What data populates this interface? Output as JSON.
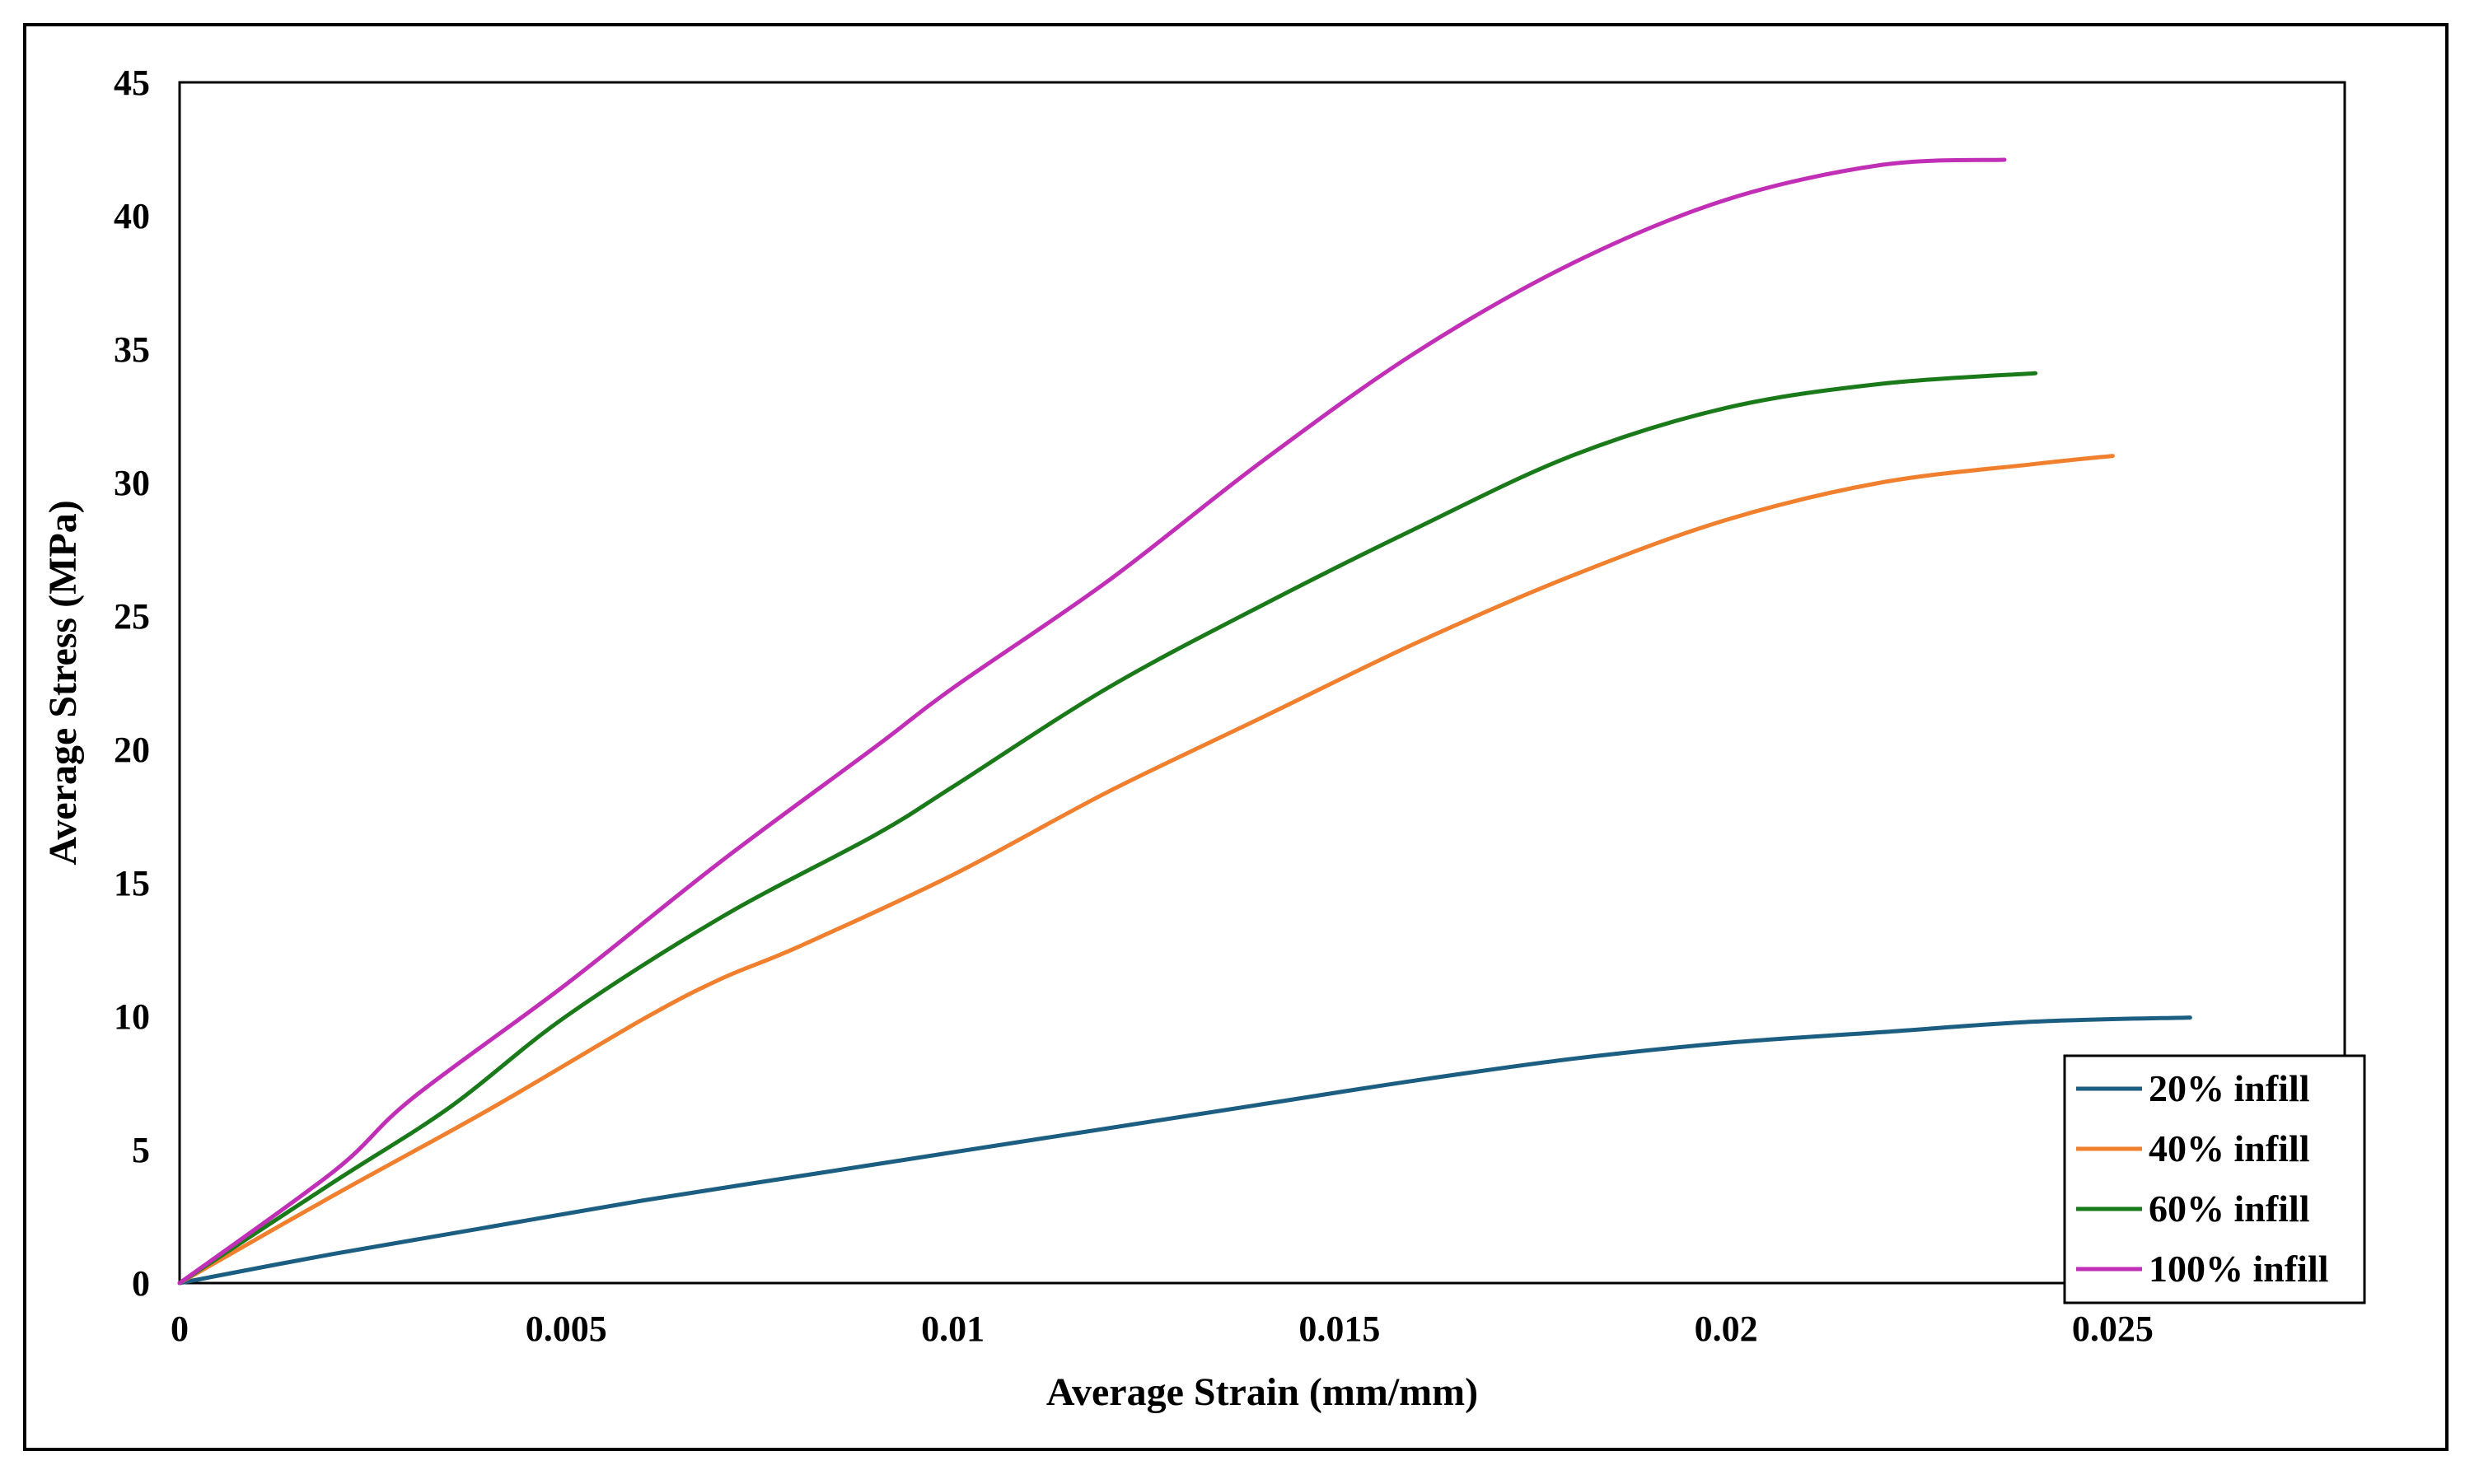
{
  "chart_data": {
    "type": "line",
    "xlabel": "Average Strain (mm/mm)",
    "ylabel": "Average Stress (MPa)",
    "xlim": [
      0,
      0.028
    ],
    "ylim": [
      0,
      45
    ],
    "x_ticks": [
      "0",
      "0.005",
      "0.01",
      "0.015",
      "0.02",
      "0.025"
    ],
    "x_tick_values": [
      0,
      0.005,
      0.01,
      0.015,
      0.02,
      0.025
    ],
    "y_ticks": [
      "0",
      "5",
      "10",
      "15",
      "20",
      "25",
      "30",
      "35",
      "40",
      "45"
    ],
    "y_tick_values": [
      0,
      5,
      10,
      15,
      20,
      25,
      30,
      35,
      40,
      45
    ],
    "grid": false,
    "legend_position": "bottom-right",
    "series": [
      {
        "name": "20% infill",
        "color": "#1b5e82",
        "x": [
          0,
          0.002,
          0.004,
          0.006,
          0.008,
          0.01,
          0.012,
          0.014,
          0.016,
          0.018,
          0.02,
          0.022,
          0.024,
          0.026
        ],
        "y": [
          0,
          1.1,
          2.1,
          3.1,
          4.0,
          4.9,
          5.8,
          6.7,
          7.6,
          8.4,
          9.0,
          9.4,
          9.8,
          9.95
        ]
      },
      {
        "name": "40% infill",
        "color": "#f07f2e",
        "x": [
          0,
          0.002,
          0.004,
          0.006,
          0.007,
          0.008,
          0.01,
          0.012,
          0.014,
          0.016,
          0.018,
          0.02,
          0.022,
          0.024,
          0.025
        ],
        "y": [
          0,
          3.3,
          6.5,
          9.9,
          11.4,
          12.6,
          15.3,
          18.4,
          21.2,
          24.0,
          26.5,
          28.6,
          30.0,
          30.7,
          31.0
        ]
      },
      {
        "name": "60% infill",
        "color": "#1a7a1a",
        "x": [
          0,
          0.002,
          0.0035,
          0.005,
          0.007,
          0.009,
          0.01,
          0.012,
          0.014,
          0.016,
          0.018,
          0.02,
          0.022,
          0.024
        ],
        "y": [
          0,
          3.8,
          6.6,
          10.0,
          13.7,
          16.8,
          18.6,
          22.3,
          25.4,
          28.3,
          31.0,
          32.8,
          33.7,
          34.1
        ]
      },
      {
        "name": "100% infill",
        "color": "#c12fb6",
        "x": [
          0,
          0.002,
          0.003,
          0.005,
          0.007,
          0.009,
          0.01,
          0.012,
          0.014,
          0.016,
          0.018,
          0.02,
          0.022,
          0.0236
        ],
        "y": [
          0,
          4.2,
          6.9,
          11.2,
          15.8,
          20.1,
          22.3,
          26.3,
          30.8,
          34.9,
          38.2,
          40.6,
          41.9,
          42.1
        ]
      }
    ]
  }
}
